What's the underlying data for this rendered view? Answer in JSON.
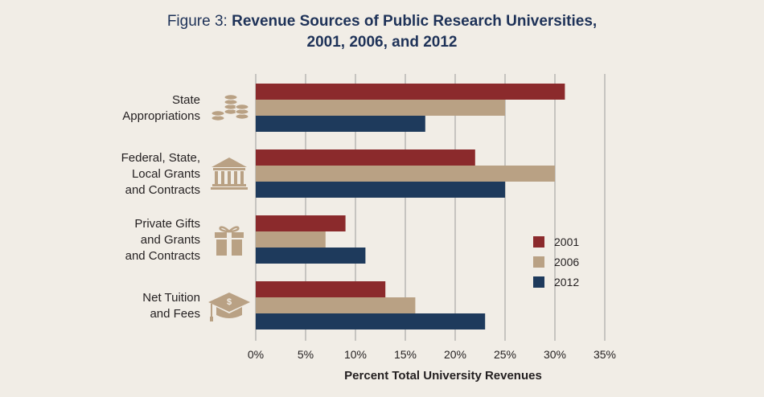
{
  "figure_label": "Figure 3:",
  "title_line1": "Revenue Sources of Public Research Universities,",
  "title_line2": "2001, 2006, and 2012",
  "colors": {
    "background": "#f1ede6",
    "title": "#1e3258",
    "s2001": "#8b2a2c",
    "s2006": "#b9a184",
    "s2012": "#1e3a5c",
    "icon": "#b9a184",
    "grid": "#9a9a9a",
    "text": "#231f20"
  },
  "chart_data": {
    "type": "bar",
    "orientation": "horizontal",
    "title": "Revenue Sources of Public Research Universities, 2001, 2006, and 2012",
    "xlabel": "Percent Total University Revenues",
    "ylabel": "",
    "xlim": [
      0,
      35
    ],
    "xticks": [
      0,
      5,
      10,
      15,
      20,
      25,
      30,
      35
    ],
    "xtick_labels": [
      "0%",
      "5%",
      "10%",
      "15%",
      "20%",
      "25%",
      "30%",
      "35%"
    ],
    "grid": "vertical",
    "legend_position": "right",
    "categories": [
      {
        "lines": [
          "State",
          "Appropriations"
        ],
        "icon": "coins-icon"
      },
      {
        "lines": [
          "Federal, State,",
          "Local Grants",
          "and Contracts"
        ],
        "icon": "government-building-icon"
      },
      {
        "lines": [
          "Private Gifts",
          "and Grants",
          "and Contracts"
        ],
        "icon": "gift-icon"
      },
      {
        "lines": [
          "Net Tuition",
          "and Fees"
        ],
        "icon": "graduation-cap-icon"
      }
    ],
    "series": [
      {
        "name": "2001",
        "color": "#8b2a2c",
        "values": [
          31,
          22,
          9,
          13
        ]
      },
      {
        "name": "2006",
        "color": "#b9a184",
        "values": [
          25,
          30,
          7,
          16
        ]
      },
      {
        "name": "2012",
        "color": "#1e3a5c",
        "values": [
          17,
          25,
          11,
          23
        ]
      }
    ]
  }
}
